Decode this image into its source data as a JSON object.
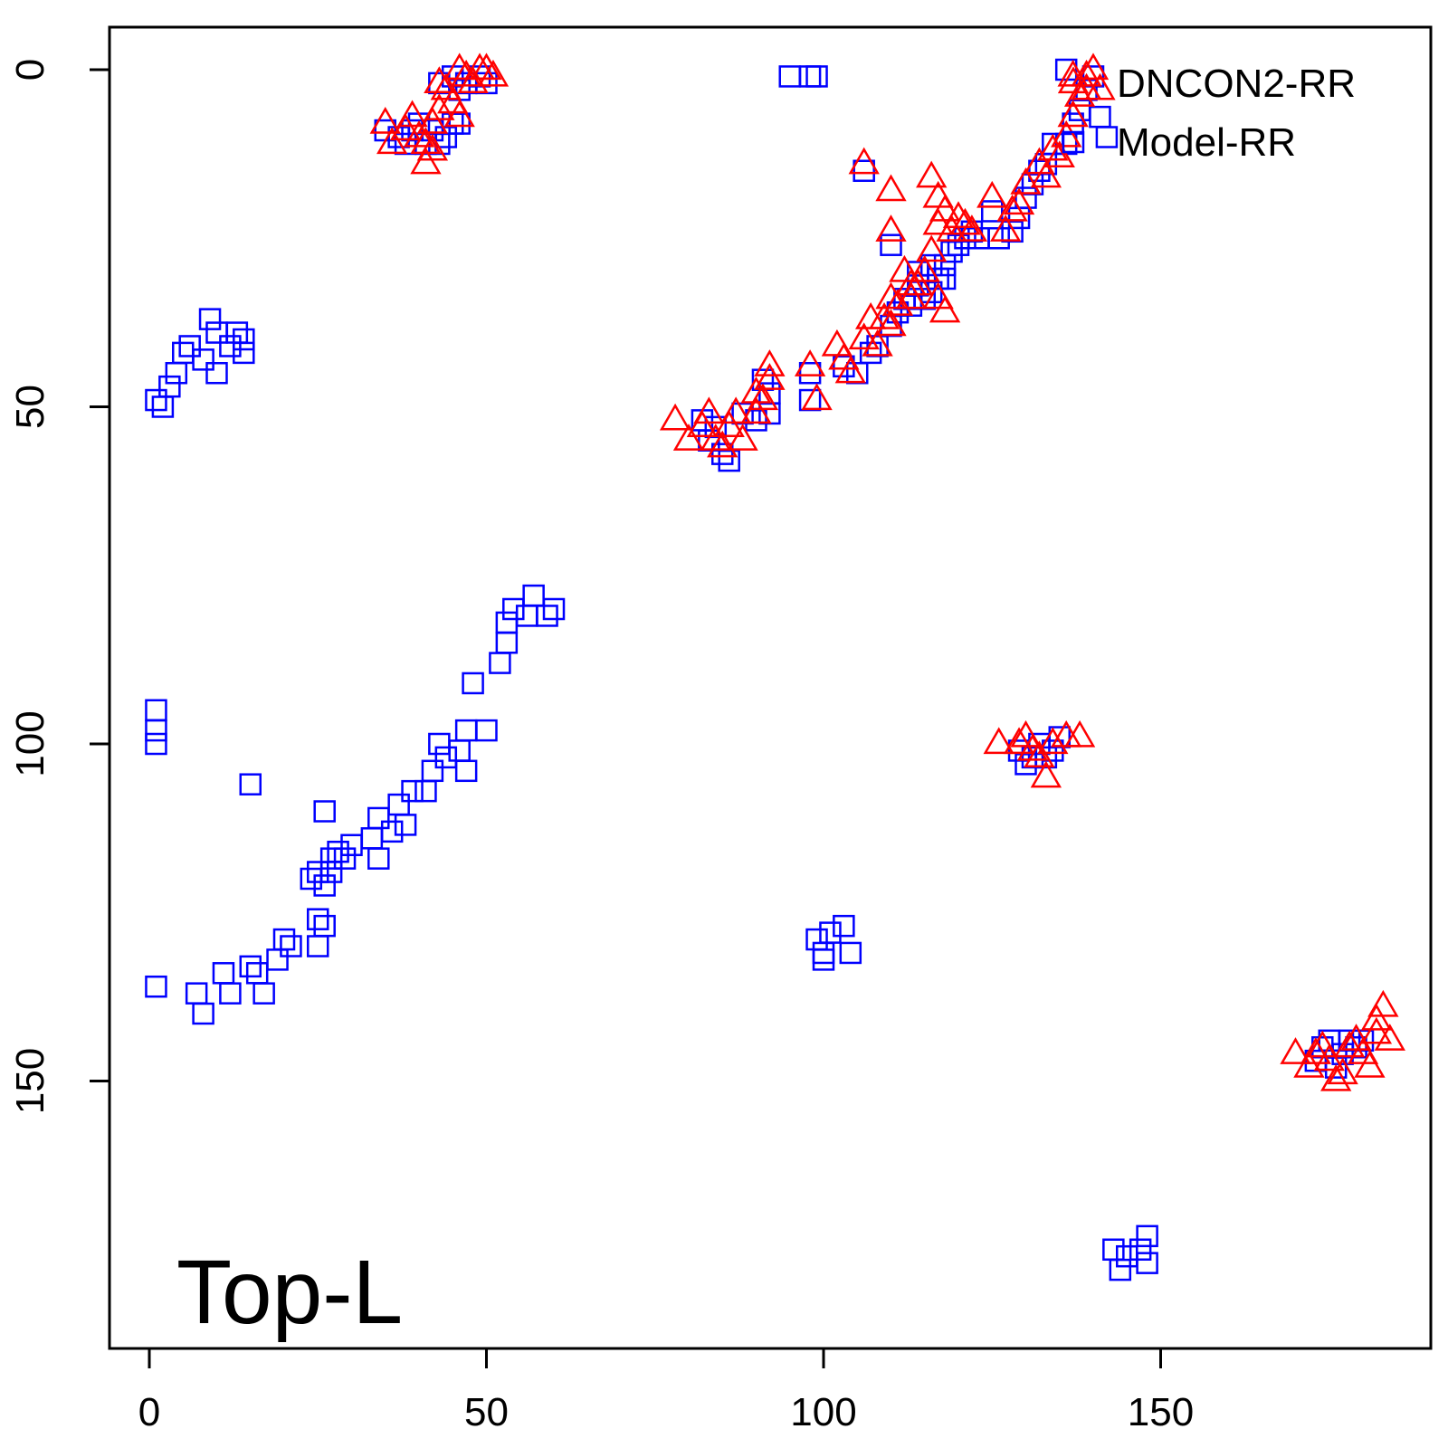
{
  "chart_data": {
    "type": "scatter",
    "title": "",
    "xlabel": "",
    "ylabel": "",
    "xlim": [
      -6,
      184
    ],
    "ylim": [
      186,
      -6
    ],
    "y_reversed": true,
    "x_ticks": [
      0,
      50,
      100,
      150
    ],
    "x_tick_labels": [
      "0",
      "50",
      "100",
      "150"
    ],
    "y_ticks": [
      0,
      50,
      100,
      150
    ],
    "y_tick_labels": [
      "0",
      "50",
      "100",
      "150"
    ],
    "grid": false,
    "legend_position": "top-right",
    "annotation": "Top-L",
    "series": [
      {
        "name": "DNCON2-RR",
        "marker": "triangle",
        "color": "#ff0000",
        "points": [
          [
            35,
            8
          ],
          [
            36,
            11
          ],
          [
            38,
            9
          ],
          [
            39,
            7
          ],
          [
            40,
            10
          ],
          [
            41,
            11
          ],
          [
            42,
            8
          ],
          [
            43,
            6
          ],
          [
            42,
            12
          ],
          [
            41,
            14
          ],
          [
            43,
            2
          ],
          [
            44,
            3
          ],
          [
            45,
            5
          ],
          [
            46,
            0
          ],
          [
            46,
            7
          ],
          [
            47,
            1
          ],
          [
            48,
            2
          ],
          [
            49,
            0
          ],
          [
            50,
            0
          ],
          [
            51,
            1
          ],
          [
            106,
            14
          ],
          [
            110,
            18
          ],
          [
            110,
            24
          ],
          [
            116,
            16
          ],
          [
            117,
            19
          ],
          [
            117,
            23
          ],
          [
            118,
            21
          ],
          [
            119,
            24
          ],
          [
            120,
            22
          ],
          [
            121,
            23
          ],
          [
            122,
            24
          ],
          [
            116,
            27
          ],
          [
            115,
            30
          ],
          [
            114,
            32
          ],
          [
            113,
            34
          ],
          [
            117,
            34
          ],
          [
            118,
            36
          ],
          [
            107,
            37
          ],
          [
            109,
            37
          ],
          [
            111,
            35
          ],
          [
            110,
            34
          ],
          [
            112,
            30
          ],
          [
            113,
            32
          ],
          [
            98,
            44
          ],
          [
            99,
            49
          ],
          [
            102,
            41
          ],
          [
            103,
            43
          ],
          [
            104,
            45
          ],
          [
            106,
            40
          ],
          [
            108,
            41
          ],
          [
            110,
            38
          ],
          [
            78,
            52
          ],
          [
            80,
            55
          ],
          [
            82,
            53
          ],
          [
            83,
            51
          ],
          [
            84,
            55
          ],
          [
            85,
            56
          ],
          [
            86,
            53
          ],
          [
            87,
            51
          ],
          [
            88,
            55
          ],
          [
            90,
            51
          ],
          [
            91,
            49
          ],
          [
            92,
            46
          ],
          [
            92,
            44
          ],
          [
            90,
            48
          ],
          [
            125,
            19
          ],
          [
            127,
            24
          ],
          [
            128,
            21
          ],
          [
            129,
            20
          ],
          [
            130,
            17
          ],
          [
            132,
            14
          ],
          [
            133,
            16
          ],
          [
            134,
            12
          ],
          [
            135,
            13
          ],
          [
            136,
            10
          ],
          [
            137,
            7
          ],
          [
            138,
            4
          ],
          [
            139,
            1
          ],
          [
            140,
            0
          ],
          [
            141,
            3
          ],
          [
            137,
            1
          ],
          [
            139,
            3
          ],
          [
            126,
            100
          ],
          [
            129,
            100
          ],
          [
            130,
            99
          ],
          [
            131,
            101
          ],
          [
            132,
            102
          ],
          [
            133,
            105
          ],
          [
            134,
            100
          ],
          [
            136,
            99
          ],
          [
            138,
            99
          ],
          [
            170,
            146
          ],
          [
            172,
            148
          ],
          [
            173,
            146
          ],
          [
            174,
            145
          ],
          [
            175,
            147
          ],
          [
            176,
            150
          ],
          [
            177,
            149
          ],
          [
            178,
            145
          ],
          [
            179,
            144
          ],
          [
            180,
            146
          ],
          [
            181,
            148
          ],
          [
            182,
            143
          ],
          [
            183,
            139
          ],
          [
            184,
            144
          ],
          [
            182,
            141
          ]
        ]
      },
      {
        "name": "Model-RR",
        "marker": "square",
        "color": "#0000ff",
        "points": [
          [
            35,
            9
          ],
          [
            37,
            10
          ],
          [
            38,
            11
          ],
          [
            39,
            9
          ],
          [
            40,
            8
          ],
          [
            41,
            11
          ],
          [
            42,
            9
          ],
          [
            43,
            11
          ],
          [
            44,
            10
          ],
          [
            45,
            8
          ],
          [
            46,
            8
          ],
          [
            43,
            2
          ],
          [
            45,
            1
          ],
          [
            46,
            3
          ],
          [
            47,
            2
          ],
          [
            49,
            1
          ],
          [
            50,
            2
          ],
          [
            95,
            1
          ],
          [
            98,
            1
          ],
          [
            99,
            1
          ],
          [
            106,
            15
          ],
          [
            110,
            26
          ],
          [
            113,
            35
          ],
          [
            114,
            32
          ],
          [
            115,
            34
          ],
          [
            116,
            33
          ],
          [
            117,
            31
          ],
          [
            118,
            29
          ],
          [
            119,
            27
          ],
          [
            120,
            26
          ],
          [
            121,
            25
          ],
          [
            122,
            24
          ],
          [
            123,
            25
          ],
          [
            114,
            30
          ],
          [
            116,
            29
          ],
          [
            118,
            31
          ],
          [
            103,
            44
          ],
          [
            105,
            45
          ],
          [
            107,
            42
          ],
          [
            108,
            41
          ],
          [
            110,
            38
          ],
          [
            111,
            36
          ],
          [
            112,
            34
          ],
          [
            98,
            45
          ],
          [
            98,
            49
          ],
          [
            82,
            52
          ],
          [
            83,
            55
          ],
          [
            84,
            53
          ],
          [
            85,
            57
          ],
          [
            86,
            58
          ],
          [
            88,
            51
          ],
          [
            90,
            52
          ],
          [
            92,
            51
          ],
          [
            92,
            48
          ],
          [
            91,
            46
          ],
          [
            125,
            21
          ],
          [
            126,
            25
          ],
          [
            128,
            24
          ],
          [
            129,
            22
          ],
          [
            130,
            19
          ],
          [
            131,
            17
          ],
          [
            132,
            15
          ],
          [
            133,
            14
          ],
          [
            134,
            11
          ],
          [
            136,
            11
          ],
          [
            137,
            8
          ],
          [
            138,
            6
          ],
          [
            139,
            3
          ],
          [
            140,
            1
          ],
          [
            141,
            7
          ],
          [
            142,
            10
          ],
          [
            136,
            0
          ],
          [
            129,
            101
          ],
          [
            130,
            103
          ],
          [
            131,
            102
          ],
          [
            132,
            100
          ],
          [
            133,
            102
          ],
          [
            134,
            101
          ],
          [
            135,
            99
          ],
          [
            1,
            49
          ],
          [
            2,
            50
          ],
          [
            3,
            47
          ],
          [
            4,
            45
          ],
          [
            5,
            42
          ],
          [
            6,
            41
          ],
          [
            8,
            43
          ],
          [
            9,
            37
          ],
          [
            10,
            39
          ],
          [
            10,
            45
          ],
          [
            12,
            41
          ],
          [
            13,
            39
          ],
          [
            14,
            40
          ],
          [
            14,
            42
          ],
          [
            1,
            95
          ],
          [
            1,
            98
          ],
          [
            1,
            100
          ],
          [
            15,
            106
          ],
          [
            1,
            136
          ],
          [
            7,
            137
          ],
          [
            8,
            140
          ],
          [
            11,
            134
          ],
          [
            12,
            137
          ],
          [
            15,
            133
          ],
          [
            16,
            134
          ],
          [
            17,
            137
          ],
          [
            19,
            132
          ],
          [
            20,
            129
          ],
          [
            21,
            130
          ],
          [
            25,
            126
          ],
          [
            25,
            130
          ],
          [
            26,
            127
          ],
          [
            24,
            120
          ],
          [
            25,
            119
          ],
          [
            26,
            121
          ],
          [
            27,
            117
          ],
          [
            27,
            119
          ],
          [
            28,
            116
          ],
          [
            29,
            117
          ],
          [
            30,
            115
          ],
          [
            33,
            114
          ],
          [
            34,
            111
          ],
          [
            34,
            117
          ],
          [
            36,
            113
          ],
          [
            37,
            109
          ],
          [
            38,
            112
          ],
          [
            39,
            107
          ],
          [
            41,
            107
          ],
          [
            42,
            104
          ],
          [
            43,
            100
          ],
          [
            44,
            102
          ],
          [
            46,
            101
          ],
          [
            47,
            104
          ],
          [
            47,
            98
          ],
          [
            50,
            98
          ],
          [
            48,
            91
          ],
          [
            52,
            88
          ],
          [
            53,
            85
          ],
          [
            53,
            82
          ],
          [
            54,
            80
          ],
          [
            56,
            81
          ],
          [
            57,
            78
          ],
          [
            59,
            81
          ],
          [
            60,
            80
          ],
          [
            26,
            110
          ],
          [
            99,
            129
          ],
          [
            100,
            131
          ],
          [
            101,
            128
          ],
          [
            103,
            127
          ],
          [
            104,
            131
          ],
          [
            100,
            132
          ],
          [
            143,
            175
          ],
          [
            144,
            178
          ],
          [
            145,
            176
          ],
          [
            147,
            175
          ],
          [
            148,
            177
          ],
          [
            148,
            173
          ],
          [
            173,
            147
          ],
          [
            174,
            145
          ],
          [
            175,
            144
          ],
          [
            176,
            148
          ],
          [
            177,
            146
          ],
          [
            178,
            144
          ],
          [
            179,
            145
          ],
          [
            180,
            144
          ]
        ]
      }
    ]
  }
}
